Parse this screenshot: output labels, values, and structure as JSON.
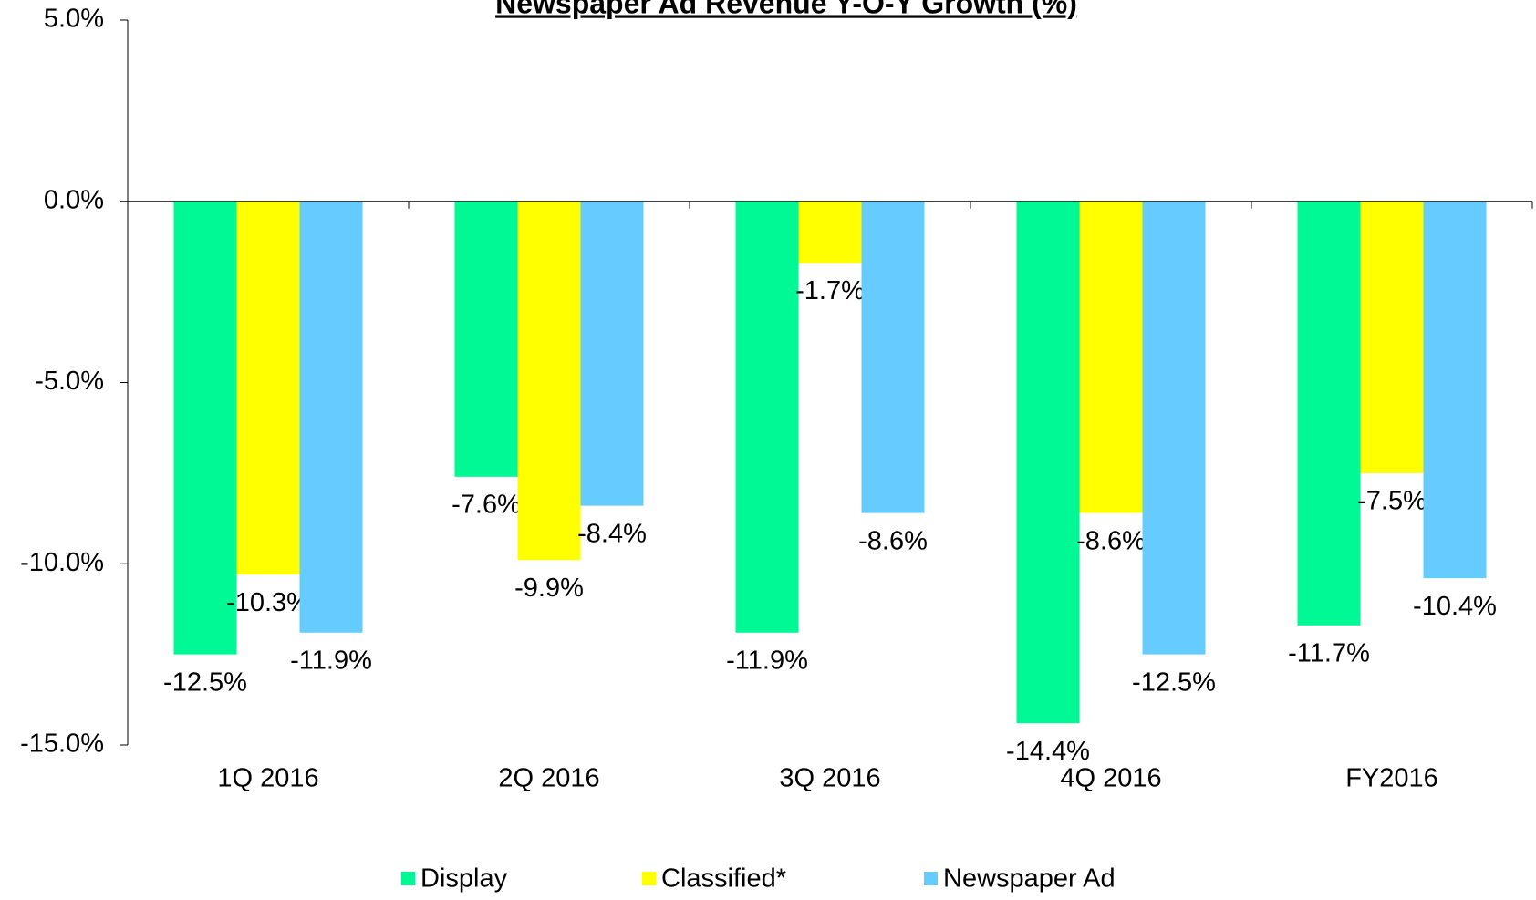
{
  "chart_data": {
    "type": "bar",
    "title": "Newspaper Ad Revenue Y-O-Y Growth (%)",
    "categories": [
      "1Q 2016",
      "2Q 2016",
      "3Q 2016",
      "4Q 2016",
      "FY2016"
    ],
    "series": [
      {
        "name": "Display",
        "color": "#00f994",
        "values": [
          -12.5,
          -7.6,
          -11.9,
          -14.4,
          -11.7
        ],
        "value_labels": [
          "-12.5%",
          "-7.6%",
          "-11.9%",
          "-14.4%",
          "-11.7%"
        ]
      },
      {
        "name": "Classified*",
        "color": "#ffff00",
        "values": [
          -10.3,
          -9.9,
          -1.7,
          -8.6,
          -7.5
        ],
        "value_labels": [
          "-10.3%",
          "-9.9%",
          "-1.7%",
          "-8.6%",
          "-7.5%"
        ]
      },
      {
        "name": "Newspaper Ad",
        "color": "#66ccff",
        "values": [
          -11.9,
          -8.4,
          -8.6,
          -12.5,
          -10.4
        ],
        "value_labels": [
          "-11.9%",
          "-8.4%",
          "-8.6%",
          "-12.5%",
          "-10.4%"
        ]
      }
    ],
    "ylim": [
      -15,
      5
    ],
    "yticks": [
      {
        "value": -15,
        "label": "-15.0%"
      },
      {
        "value": -10,
        "label": "-10.0%"
      },
      {
        "value": -5,
        "label": "-5.0%"
      },
      {
        "value": 0,
        "label": "0.0%"
      },
      {
        "value": 5,
        "label": "5.0%"
      }
    ],
    "legend": "bottom"
  }
}
